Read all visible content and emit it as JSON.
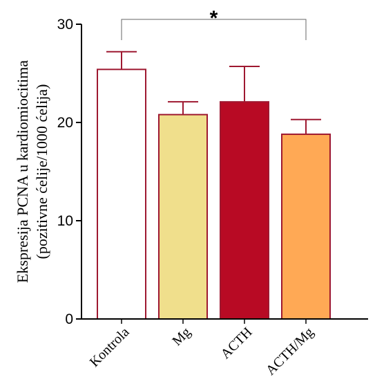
{
  "chart_data": {
    "type": "bar",
    "categories": [
      "Kontrola",
      "Mg",
      "ACTH",
      "ACTH/Mg"
    ],
    "values": [
      25.4,
      20.8,
      22.1,
      18.8
    ],
    "errors": [
      1.8,
      1.3,
      3.6,
      1.5
    ],
    "colors": [
      "#ffffff",
      "#f0df8c",
      "#b80a24",
      "#ffa955"
    ],
    "edge_color": "#9e1830",
    "ylabel_line1": "Ekspresija PCNA u kardiomiocitima",
    "ylabel_line2": "(pozitivne ćelije/1000 ćelija)",
    "ylim": [
      0,
      30
    ],
    "yticks": [
      "0",
      "10",
      "20",
      "30"
    ],
    "ytick_values": [
      0,
      10,
      20,
      30
    ],
    "significance": {
      "from": "Kontrola",
      "to": "ACTH/Mg",
      "label": "*"
    },
    "grid": false
  }
}
